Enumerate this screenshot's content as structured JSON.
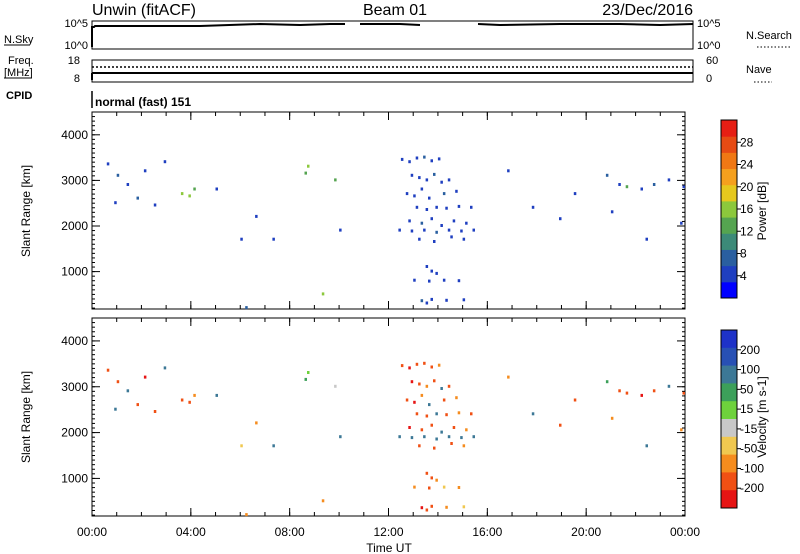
{
  "header": {
    "station": "Unwin (fitACF)",
    "beam": "Beam 01",
    "date": "23/Dec/2016"
  },
  "panels": {
    "nsky_label": "N.Sky",
    "nsky_ticks": [
      "10^5",
      "10^0"
    ],
    "nsearch_label": "N.Search",
    "nsearch_ticks": [
      "10^5",
      "10^0"
    ],
    "freq_label_line1": "Freq.",
    "freq_label_line2": "[MHz]",
    "freq_ticks": [
      "18",
      "8"
    ],
    "nave_label": "Nave",
    "nave_ticks": [
      "60",
      "0"
    ],
    "cpid_label": "CPID",
    "cpid_value": "normal (fast) 151"
  },
  "axes": {
    "xlabel": "Time UT",
    "x_ticks": [
      "00:00",
      "04:00",
      "08:00",
      "12:00",
      "16:00",
      "20:00",
      "00:00"
    ],
    "ylabel": "Slant Range [km]",
    "y_ticks": [
      "1000",
      "2000",
      "3000",
      "4000"
    ]
  },
  "colors": {
    "power_scale": [
      "#0000ff",
      "#1f3fc0",
      "#2a5fa0",
      "#3c8a78",
      "#55a450",
      "#8cc83c",
      "#e6c81e",
      "#f5a01e",
      "#f07814",
      "#e64b14",
      "#e61e14"
    ],
    "velocity_scale": [
      "#e61414",
      "#f05014",
      "#f58c1e",
      "#f0c850",
      "#c8c8c8",
      "#6ed23c",
      "#3ca05a",
      "#3c7896",
      "#2850b4",
      "#1e32c8"
    ]
  },
  "chart_data": [
    {
      "type": "heatmap",
      "name": "Power",
      "colorbar_label": "Power [dB]",
      "colorbar_ticks": [
        "4",
        "8",
        "12",
        "16",
        "20",
        "24",
        "28"
      ],
      "x_range_hours": [
        0,
        24
      ],
      "y_range_km": [
        180,
        4500
      ],
      "cells": [
        [
          12.5,
          3450,
          4
        ],
        [
          12.8,
          3400,
          6
        ],
        [
          13.1,
          3480,
          4
        ],
        [
          13.4,
          3500,
          8
        ],
        [
          13.7,
          3420,
          5
        ],
        [
          14.0,
          3460,
          4
        ],
        [
          12.9,
          3100,
          6
        ],
        [
          13.2,
          3050,
          4
        ],
        [
          13.5,
          3000,
          5
        ],
        [
          13.8,
          3120,
          8
        ],
        [
          14.1,
          2950,
          4
        ],
        [
          14.4,
          3000,
          6
        ],
        [
          12.7,
          2700,
          4
        ],
        [
          13.0,
          2650,
          6
        ],
        [
          13.3,
          2800,
          4
        ],
        [
          13.6,
          2600,
          5
        ],
        [
          14.2,
          2700,
          8
        ],
        [
          14.7,
          2750,
          4
        ],
        [
          13.1,
          2400,
          4
        ],
        [
          13.5,
          2350,
          6
        ],
        [
          13.9,
          2400,
          4
        ],
        [
          14.3,
          2380,
          5
        ],
        [
          14.8,
          2420,
          4
        ],
        [
          15.3,
          2400,
          6
        ],
        [
          12.8,
          2100,
          4
        ],
        [
          13.3,
          2050,
          8
        ],
        [
          13.7,
          2150,
          5
        ],
        [
          14.1,
          2000,
          4
        ],
        [
          14.6,
          2100,
          6
        ],
        [
          15.1,
          2050,
          4
        ],
        [
          12.4,
          1900,
          4
        ],
        [
          12.9,
          1880,
          6
        ],
        [
          13.4,
          1900,
          4
        ],
        [
          13.9,
          1850,
          8
        ],
        [
          14.4,
          1900,
          5
        ],
        [
          14.9,
          1880,
          4
        ],
        [
          15.4,
          1900,
          6
        ],
        [
          13.2,
          1700,
          4
        ],
        [
          13.8,
          1650,
          6
        ],
        [
          14.5,
          1750,
          4
        ],
        [
          15.0,
          1700,
          5
        ],
        [
          13.5,
          1100,
          4
        ],
        [
          13.7,
          1000,
          6
        ],
        [
          13.9,
          950,
          4
        ],
        [
          13.0,
          800,
          4
        ],
        [
          13.6,
          780,
          6
        ],
        [
          14.2,
          800,
          4
        ],
        [
          14.8,
          790,
          5
        ],
        [
          13.3,
          350,
          8
        ],
        [
          13.5,
          300,
          6
        ],
        [
          13.7,
          380,
          4
        ],
        [
          14.3,
          360,
          4
        ],
        [
          15.0,
          370,
          5
        ],
        [
          0.6,
          3350,
          6
        ],
        [
          1.0,
          3100,
          8
        ],
        [
          1.4,
          2900,
          6
        ],
        [
          2.1,
          3200,
          4
        ],
        [
          2.9,
          3400,
          6
        ],
        [
          3.6,
          2700,
          16
        ],
        [
          3.9,
          2650,
          16
        ],
        [
          4.1,
          2800,
          12
        ],
        [
          0.9,
          2500,
          6
        ],
        [
          1.8,
          2600,
          8
        ],
        [
          2.5,
          2450,
          4
        ],
        [
          6.0,
          1700,
          4
        ],
        [
          6.6,
          2200,
          4
        ],
        [
          7.3,
          1700,
          4
        ],
        [
          8.7,
          3300,
          16
        ],
        [
          8.6,
          3150,
          12
        ],
        [
          9.8,
          3000,
          12
        ],
        [
          10.0,
          1900,
          4
        ],
        [
          9.3,
          500,
          16
        ],
        [
          5.0,
          2800,
          4
        ],
        [
          6.2,
          200,
          8
        ],
        [
          16.8,
          3200,
          4
        ],
        [
          17.8,
          2400,
          4
        ],
        [
          18.9,
          2150,
          4
        ],
        [
          19.5,
          2700,
          6
        ],
        [
          20.8,
          3100,
          8
        ],
        [
          21.3,
          2900,
          6
        ],
        [
          21.6,
          2850,
          12
        ],
        [
          22.2,
          2800,
          6
        ],
        [
          22.7,
          2900,
          8
        ],
        [
          23.3,
          3000,
          4
        ],
        [
          21.0,
          2300,
          4
        ],
        [
          22.4,
          1700,
          4
        ],
        [
          23.8,
          2050,
          4
        ],
        [
          23.9,
          2850,
          4
        ]
      ]
    },
    {
      "type": "heatmap",
      "name": "Velocity",
      "colorbar_label": "Velocity [m s-1]",
      "colorbar_ticks": [
        "200",
        "100",
        "50",
        "15",
        "-15",
        "-50",
        "-100",
        "-200"
      ],
      "x_range_hours": [
        0,
        24
      ],
      "y_range_km": [
        180,
        4500
      ],
      "cells": [
        [
          12.5,
          3450,
          -150
        ],
        [
          12.8,
          3400,
          -200
        ],
        [
          13.1,
          3480,
          -100
        ],
        [
          13.4,
          3500,
          -180
        ],
        [
          13.7,
          3420,
          -120
        ],
        [
          14.0,
          3460,
          -60
        ],
        [
          12.9,
          3100,
          -200
        ],
        [
          13.2,
          3050,
          -140
        ],
        [
          13.5,
          3000,
          -90
        ],
        [
          13.8,
          3120,
          -180
        ],
        [
          14.1,
          2950,
          120
        ],
        [
          14.4,
          3000,
          -100
        ],
        [
          12.7,
          2700,
          -120
        ],
        [
          13.0,
          2650,
          -200
        ],
        [
          13.3,
          2800,
          -60
        ],
        [
          13.6,
          2600,
          150
        ],
        [
          14.2,
          2700,
          -140
        ],
        [
          14.7,
          2750,
          -80
        ],
        [
          13.1,
          2400,
          -180
        ],
        [
          13.5,
          2350,
          -120
        ],
        [
          13.9,
          2400,
          200
        ],
        [
          14.3,
          2380,
          -140
        ],
        [
          14.8,
          2420,
          -60
        ],
        [
          15.3,
          2400,
          -100
        ],
        [
          12.8,
          2100,
          -200
        ],
        [
          13.3,
          2050,
          -150
        ],
        [
          13.7,
          2150,
          -100
        ],
        [
          14.1,
          2000,
          180
        ],
        [
          14.6,
          2100,
          -140
        ],
        [
          15.1,
          2050,
          -80
        ],
        [
          12.4,
          1900,
          200
        ],
        [
          12.9,
          1880,
          150
        ],
        [
          13.4,
          1900,
          200
        ],
        [
          13.9,
          1850,
          180
        ],
        [
          14.4,
          1900,
          200
        ],
        [
          14.9,
          1880,
          150
        ],
        [
          15.4,
          1900,
          120
        ],
        [
          13.2,
          1700,
          -140
        ],
        [
          13.8,
          1650,
          -100
        ],
        [
          14.5,
          1750,
          -180
        ],
        [
          15.0,
          1700,
          -60
        ],
        [
          13.5,
          1100,
          -120
        ],
        [
          13.7,
          1000,
          -180
        ],
        [
          13.9,
          950,
          -80
        ],
        [
          13.0,
          800,
          -60
        ],
        [
          13.6,
          780,
          -100
        ],
        [
          14.2,
          800,
          -40
        ],
        [
          14.8,
          790,
          -60
        ],
        [
          13.3,
          350,
          -200
        ],
        [
          13.5,
          300,
          -180
        ],
        [
          13.7,
          380,
          -120
        ],
        [
          14.3,
          360,
          -60
        ],
        [
          15.0,
          370,
          -40
        ],
        [
          0.6,
          3350,
          -180
        ],
        [
          1.0,
          3100,
          -120
        ],
        [
          1.4,
          2900,
          150
        ],
        [
          2.1,
          3200,
          -200
        ],
        [
          2.9,
          3400,
          180
        ],
        [
          3.6,
          2700,
          -120
        ],
        [
          3.9,
          2650,
          -180
        ],
        [
          4.1,
          2800,
          -60
        ],
        [
          0.9,
          2500,
          120
        ],
        [
          1.8,
          2600,
          -100
        ],
        [
          2.5,
          2450,
          -150
        ],
        [
          6.0,
          1700,
          -40
        ],
        [
          6.6,
          2200,
          -60
        ],
        [
          7.3,
          1700,
          150
        ],
        [
          8.7,
          3300,
          40
        ],
        [
          8.6,
          3150,
          60
        ],
        [
          9.8,
          3000,
          0
        ],
        [
          10.0,
          1900,
          180
        ],
        [
          9.3,
          500,
          -60
        ],
        [
          5.0,
          2800,
          120
        ],
        [
          6.2,
          200,
          -80
        ],
        [
          16.8,
          3200,
          -60
        ],
        [
          17.8,
          2400,
          150
        ],
        [
          18.9,
          2150,
          -100
        ],
        [
          19.5,
          2700,
          -180
        ],
        [
          20.8,
          3100,
          60
        ],
        [
          21.3,
          2900,
          -140
        ],
        [
          21.6,
          2850,
          -100
        ],
        [
          22.2,
          2800,
          -200
        ],
        [
          22.7,
          2900,
          -120
        ],
        [
          23.3,
          3000,
          150
        ],
        [
          21.0,
          2300,
          -60
        ],
        [
          22.4,
          1700,
          120
        ],
        [
          23.8,
          2050,
          -80
        ],
        [
          23.9,
          2850,
          -180
        ]
      ]
    }
  ]
}
